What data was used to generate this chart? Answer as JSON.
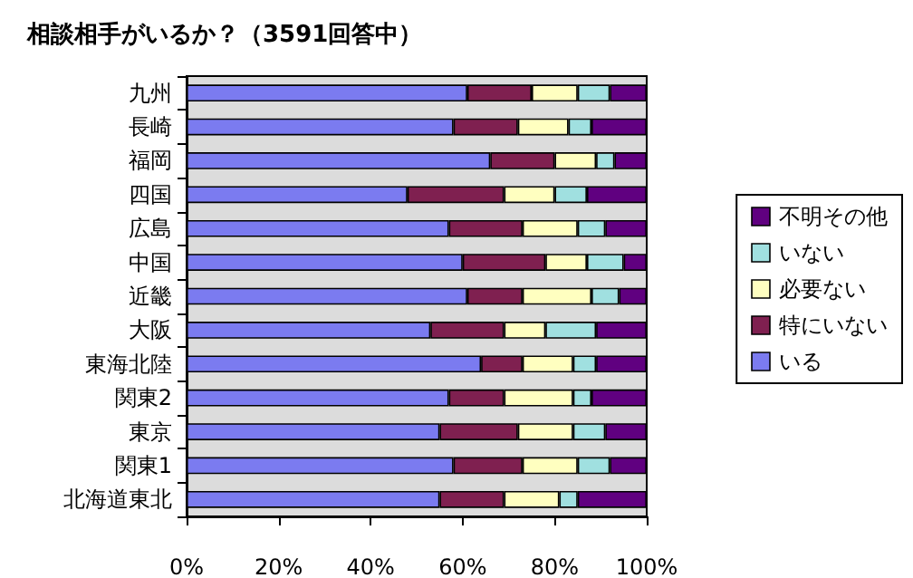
{
  "chart_data": {
    "type": "bar",
    "orientation": "horizontal",
    "stacked": true,
    "title": "相談相手がいるか？（3591回答中）",
    "categories": [
      "九州",
      "長崎",
      "福岡",
      "四国",
      "広島",
      "中国",
      "近畿",
      "大阪",
      "東海北陸",
      "関東2",
      "東京",
      "関東1",
      "北海道東北"
    ],
    "series": [
      {
        "name": "いる",
        "color": "#7b7bf0",
        "values": [
          61,
          58,
          66,
          48,
          57,
          60,
          61,
          53,
          64,
          57,
          55,
          58,
          55
        ]
      },
      {
        "name": "特にいない",
        "color": "#7f2050",
        "values": [
          14,
          14,
          14,
          21,
          16,
          18,
          12,
          16,
          9,
          12,
          17,
          15,
          14
        ]
      },
      {
        "name": "必要ない",
        "color": "#ffffc0",
        "values": [
          10,
          11,
          9,
          11,
          12,
          9,
          15,
          9,
          11,
          15,
          12,
          12,
          12
        ]
      },
      {
        "name": "いない",
        "color": "#a0e0e0",
        "values": [
          7,
          5,
          4,
          7,
          6,
          8,
          6,
          11,
          5,
          4,
          7,
          7,
          4
        ]
      },
      {
        "name": "不明その他",
        "color": "#600080",
        "values": [
          8,
          12,
          7,
          13,
          9,
          5,
          6,
          11,
          11,
          12,
          9,
          8,
          15
        ]
      }
    ],
    "xlim": [
      0,
      100
    ],
    "xticks": [
      {
        "value": 0,
        "label": "0%"
      },
      {
        "value": 20,
        "label": "20%"
      },
      {
        "value": 40,
        "label": "40%"
      },
      {
        "value": 60,
        "label": "60%"
      },
      {
        "value": 80,
        "label": "80%"
      },
      {
        "value": 100,
        "label": "100%"
      }
    ],
    "grid": false,
    "legend": "right"
  }
}
